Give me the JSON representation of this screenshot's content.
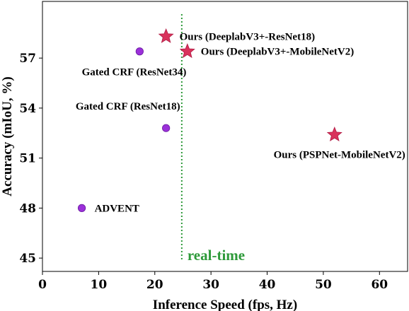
{
  "chart_data": {
    "type": "scatter",
    "xlabel": "Inference Speed (fps, Hz)",
    "ylabel": "Accuracy (mIoU, %)",
    "xlim": [
      0,
      65
    ],
    "ylim": [
      44.2,
      60.4
    ],
    "xticks": [
      0,
      10,
      20,
      30,
      40,
      50,
      60
    ],
    "yticks": [
      45,
      48,
      51,
      54,
      57
    ],
    "grid": false,
    "points": [
      {
        "label": "ADVENT",
        "x": 7.0,
        "y": 48.0,
        "marker": "circle",
        "color": "#9b30d9"
      },
      {
        "label": "Gated CRF (ResNet18)",
        "x": 22.0,
        "y": 52.8,
        "marker": "circle",
        "color": "#9b30d9"
      },
      {
        "label": "Gated CRF (ResNet34)",
        "x": 17.3,
        "y": 57.4,
        "marker": "circle",
        "color": "#9b30d9"
      },
      {
        "label": "Ours (DeeplabV3+-ResNet18)",
        "x": 22.0,
        "y": 58.3,
        "marker": "star",
        "color": "#d9335c"
      },
      {
        "label": "Ours (DeeplabV3+-MobileNetV2)",
        "x": 25.8,
        "y": 57.4,
        "marker": "star",
        "color": "#d9335c"
      },
      {
        "label": "Ours (PSPNet-MobileNetV2)",
        "x": 52.0,
        "y": 52.4,
        "marker": "star",
        "color": "#d9335c"
      }
    ],
    "annotations": [
      {
        "text": "real-time",
        "x": 24.8,
        "style": "dotted-vertical-line",
        "color": "#2e9a3a"
      }
    ]
  }
}
